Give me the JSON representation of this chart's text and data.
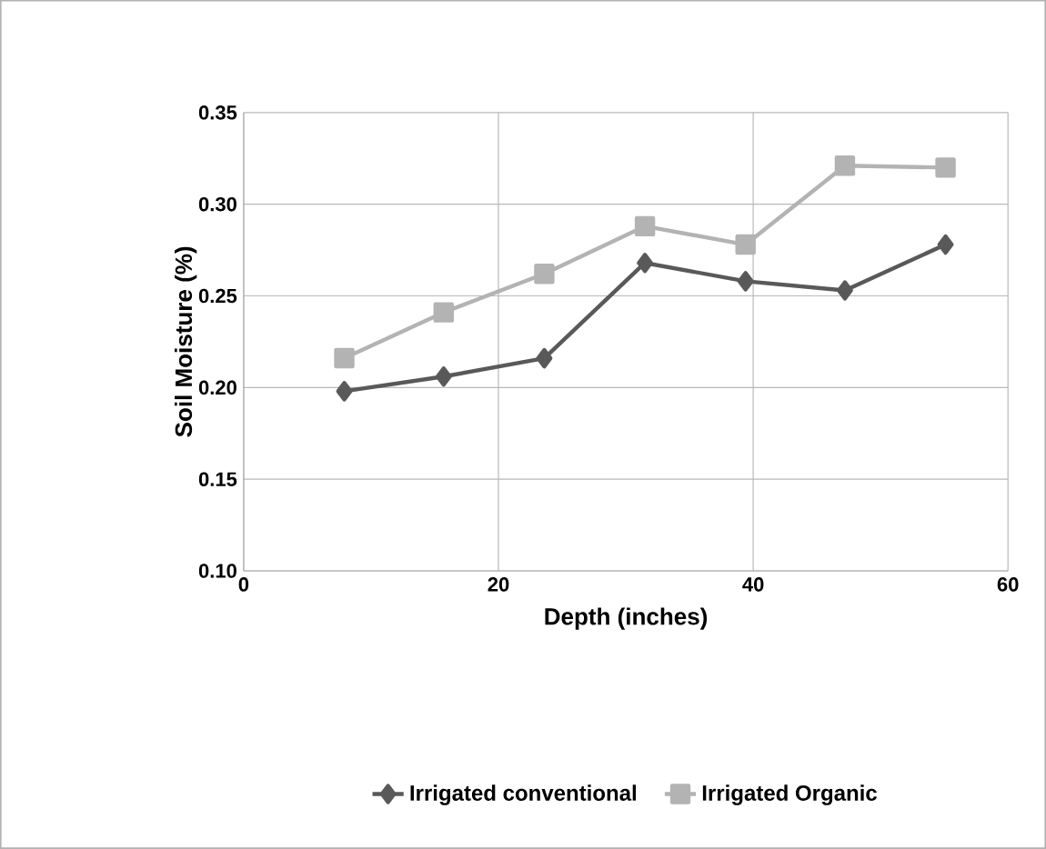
{
  "chart_data": {
    "type": "line",
    "xlabel": "Depth (inches)",
    "ylabel": "Soil Moisture (%)",
    "xlim": [
      0,
      60
    ],
    "xticks": [
      0,
      20,
      40,
      60
    ],
    "ylim": [
      0.1,
      0.35
    ],
    "yticks": [
      {
        "value": 0.1,
        "label": "0.10"
      },
      {
        "value": 0.15,
        "label": "0.15"
      },
      {
        "value": 0.2,
        "label": "0.20"
      },
      {
        "value": 0.25,
        "label": "0.25"
      },
      {
        "value": 0.3,
        "label": "0.30"
      },
      {
        "value": 0.35,
        "label": "0.35"
      }
    ],
    "grid": true,
    "legend": "bottom",
    "line_style": "solid",
    "series": [
      {
        "name": "Irrigated conventional",
        "color": "#595959",
        "marker": "diamond",
        "x": [
          7.9,
          15.7,
          23.6,
          31.5,
          39.4,
          47.2,
          55.1
        ],
        "values": [
          0.198,
          0.206,
          0.216,
          0.268,
          0.258,
          0.253,
          0.278
        ]
      },
      {
        "name": "Irrigated Organic",
        "color": "#b3b3b3",
        "marker": "square",
        "x": [
          7.9,
          15.7,
          23.6,
          31.5,
          39.4,
          47.2,
          55.1
        ],
        "values": [
          0.216,
          0.241,
          0.262,
          0.288,
          0.278,
          0.321,
          0.32
        ]
      }
    ]
  }
}
